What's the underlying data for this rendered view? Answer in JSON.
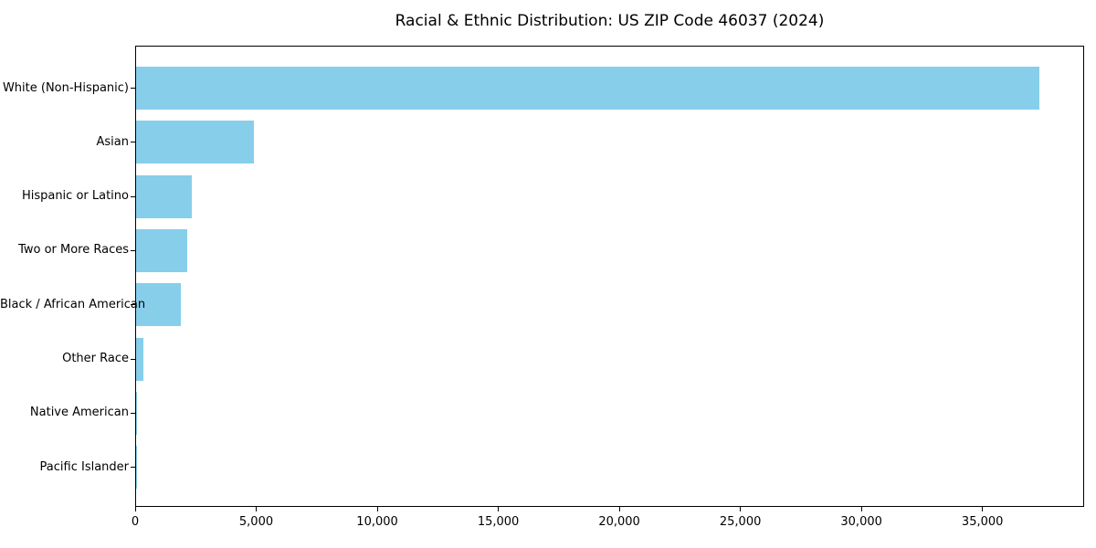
{
  "title": "Racial & Ethnic Distribution: US ZIP Code 46037 (2024)",
  "colors": {
    "bar": "#87CEEB",
    "axis": "#000000",
    "background": "#FFFFFF",
    "text": "#000000"
  },
  "chart_data": {
    "type": "bar",
    "orientation": "horizontal",
    "title": "Racial & Ethnic Distribution: US ZIP Code 46037 (2024)",
    "xlabel": "",
    "ylabel": "",
    "categories": [
      "White (Non-Hispanic)",
      "Asian",
      "Hispanic or Latino",
      "Two or More Races",
      "Black / African American",
      "Other Race",
      "Native American",
      "Pacific Islander"
    ],
    "values": [
      37300,
      4870,
      2320,
      2130,
      1830,
      300,
      20,
      10
    ],
    "xlim": [
      0,
      39200
    ],
    "xticks": [
      0,
      5000,
      10000,
      15000,
      20000,
      25000,
      30000,
      35000
    ],
    "xtick_labels": [
      "0",
      "5,000",
      "10,000",
      "15,000",
      "20,000",
      "25,000",
      "30,000",
      "35,000"
    ],
    "bar_color": "#87CEEB",
    "grid": false,
    "legend": null
  }
}
